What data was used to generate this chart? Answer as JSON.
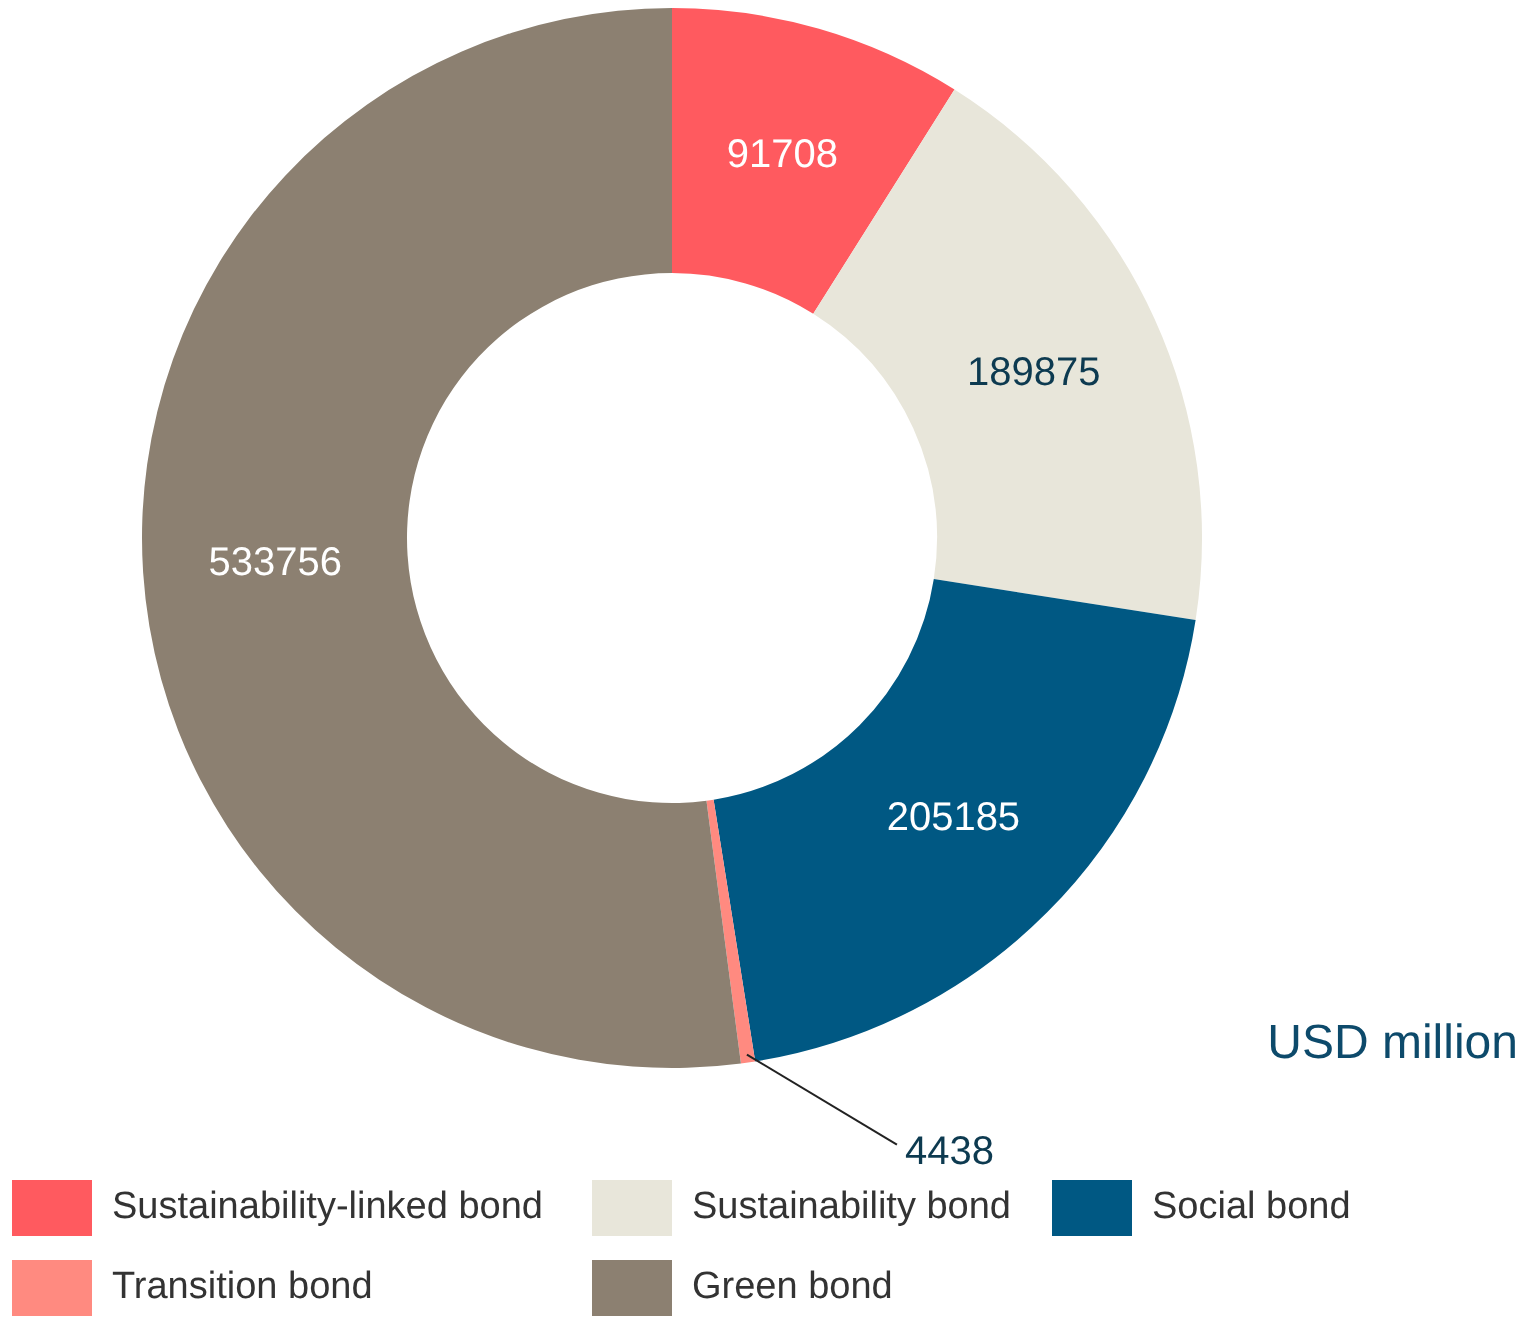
{
  "chart_data": {
    "type": "donut",
    "categories": [
      "Sustainability-linked bond",
      "Sustainability bond",
      "Social bond",
      "Transition bond",
      "Green bond"
    ],
    "values": [
      91708,
      189875,
      205185,
      4438,
      533756
    ],
    "colors": [
      "#ff5a5f",
      "#e8e6da",
      "#005883",
      "#ff8a80",
      "#8c8071"
    ],
    "data_labels": true,
    "legend": "bottom",
    "annotations": [
      "USD million"
    ]
  }
}
